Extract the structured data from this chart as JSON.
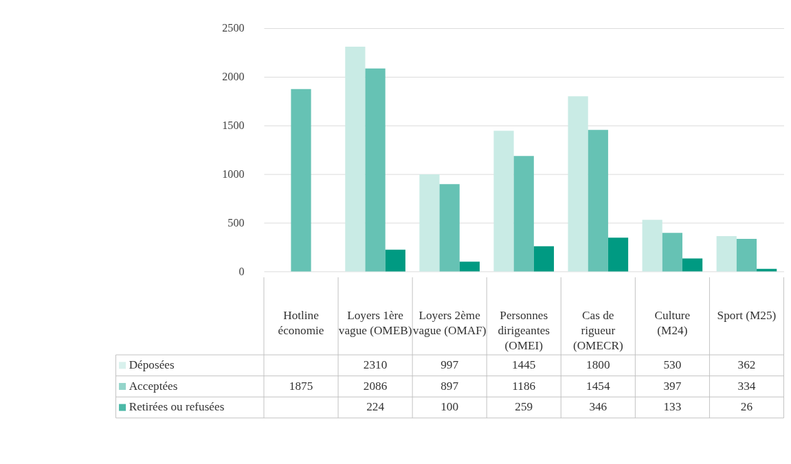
{
  "chart_data": {
    "type": "bar",
    "categories": [
      "Hotline économie",
      "Loyers 1ère vague (OMEB)",
      "Loyers 2ème vague (OMAF)",
      "Personnes dirigeantes (OMEI)",
      "Cas de rigueur (OMECR)",
      "Culture (M24)",
      "Sport (M25)"
    ],
    "series": [
      {
        "name": "Déposées",
        "color": "#c9ebe5",
        "values": [
          null,
          2310,
          997,
          1445,
          1800,
          530,
          362
        ]
      },
      {
        "name": "Acceptées",
        "color": "#66c2b4",
        "values": [
          1875,
          2086,
          897,
          1186,
          1454,
          397,
          334
        ]
      },
      {
        "name": "Retirées ou refusées",
        "color": "#009a82",
        "values": [
          null,
          224,
          100,
          259,
          346,
          133,
          26
        ]
      }
    ],
    "ylim": [
      0,
      2500
    ],
    "yticks": [
      0,
      500,
      1000,
      1500,
      2000,
      2500
    ],
    "grid": "y",
    "data_labels": true,
    "legend": "bottom left"
  }
}
